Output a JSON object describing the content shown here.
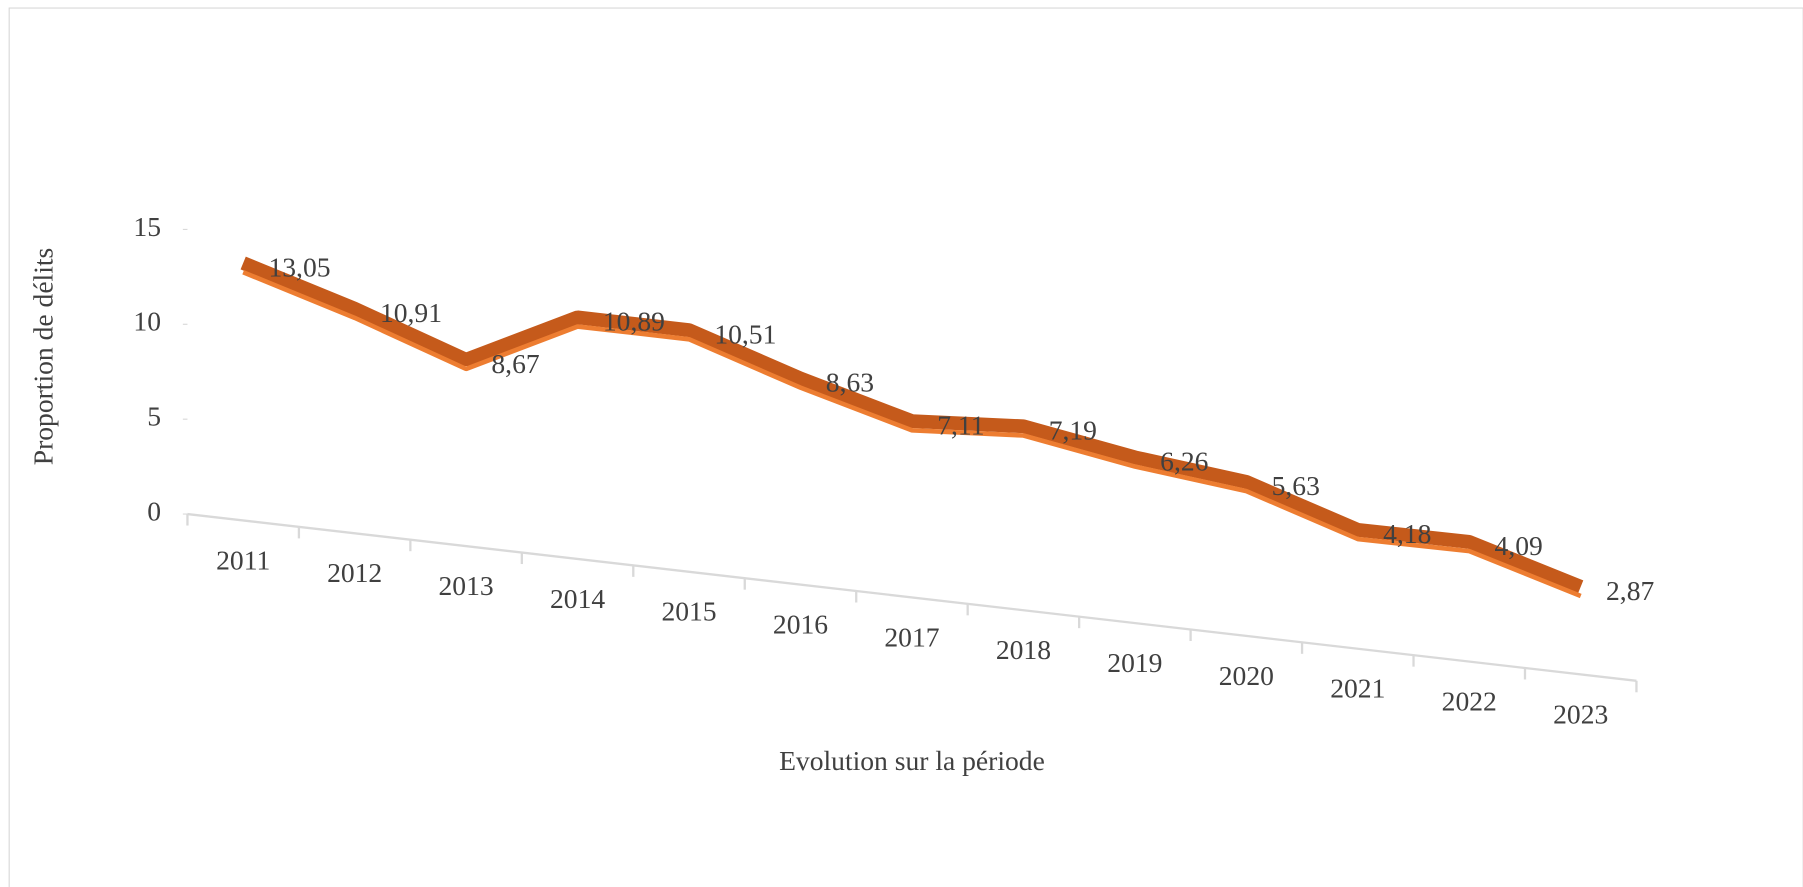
{
  "chart_data": {
    "type": "line",
    "x_label": "Evolution sur la période",
    "y_label": "Proportion de  délits",
    "categories": [
      "2011",
      "2012",
      "2013",
      "2014",
      "2015",
      "2016",
      "2017",
      "2018",
      "2019",
      "2020",
      "2021",
      "2022",
      "2023"
    ],
    "series": [
      {
        "name": "Proportion de délits",
        "color": "#c55a1b",
        "values": [
          13.05,
          10.91,
          8.67,
          10.89,
          10.51,
          8.63,
          7.11,
          7.19,
          6.26,
          5.63,
          4.18,
          4.09,
          2.87
        ],
        "value_labels": [
          "13,05",
          "10,91",
          "8,67",
          "10,89",
          "10,51",
          "8,63",
          "7,11",
          "7,19",
          "6,26",
          "5,63",
          "4,18",
          "4,09",
          "2,87"
        ]
      }
    ],
    "ylim": [
      0,
      15
    ],
    "yticks": [
      0,
      5,
      10,
      15
    ]
  }
}
